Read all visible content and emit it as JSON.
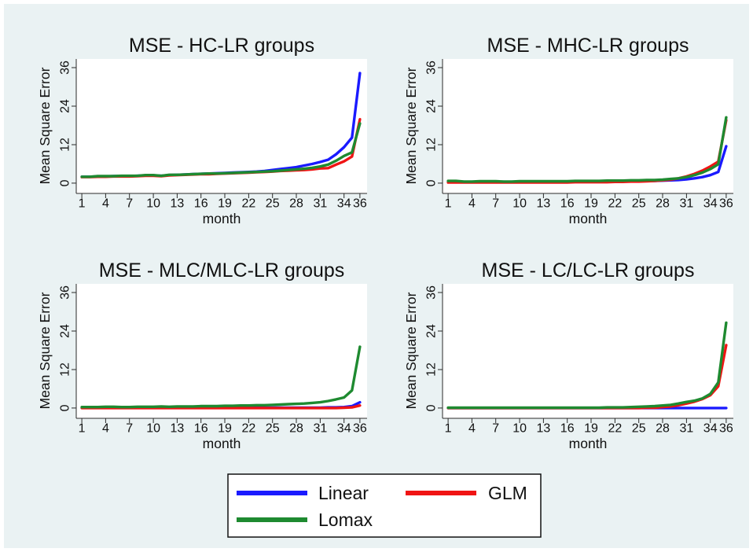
{
  "colors": {
    "background": "#eaf2f3",
    "plot_background": "#ffffff"
  },
  "legend": {
    "position": "bottom",
    "items": [
      {
        "label": "Linear",
        "color": "#1a1aff"
      },
      {
        "label": "GLM",
        "color": "#f01414"
      },
      {
        "label": "Lomax",
        "color": "#1e8a30"
      }
    ]
  },
  "chart_data": [
    {
      "type": "line",
      "title": "MSE - HC-LR groups",
      "xlabel": "month",
      "ylabel": "Mean Square Error",
      "xlim": [
        0.3,
        36.9
      ],
      "ylim": [
        -3.2,
        38.7
      ],
      "xticks": [
        1,
        4,
        7,
        10,
        13,
        16,
        19,
        22,
        25,
        28,
        31,
        34,
        36
      ],
      "yticks": [
        0,
        12,
        24,
        36
      ],
      "grid": false,
      "x": [
        1,
        2,
        3,
        4,
        5,
        6,
        7,
        8,
        9,
        10,
        11,
        12,
        13,
        14,
        15,
        16,
        17,
        18,
        19,
        20,
        21,
        22,
        23,
        24,
        25,
        26,
        27,
        28,
        29,
        30,
        31,
        32,
        33,
        34,
        35,
        36
      ],
      "series": [
        {
          "name": "Linear",
          "color": "#1a1aff",
          "values": [
            2.0,
            2.0,
            2.1,
            2.1,
            2.2,
            2.2,
            2.2,
            2.3,
            2.4,
            2.4,
            2.3,
            2.5,
            2.6,
            2.7,
            2.8,
            2.9,
            3.0,
            3.1,
            3.2,
            3.3,
            3.4,
            3.5,
            3.6,
            3.8,
            4.1,
            4.4,
            4.7,
            5.0,
            5.5,
            6.0,
            6.6,
            7.3,
            9.0,
            11.2,
            14.2,
            34.3
          ]
        },
        {
          "name": "GLM",
          "color": "#f01414",
          "values": [
            1.9,
            1.9,
            2.0,
            2.0,
            2.1,
            2.1,
            2.1,
            2.2,
            2.3,
            2.3,
            2.2,
            2.4,
            2.5,
            2.6,
            2.7,
            2.8,
            2.8,
            2.9,
            3.0,
            3.1,
            3.2,
            3.3,
            3.4,
            3.5,
            3.6,
            3.8,
            3.9,
            4.0,
            4.1,
            4.3,
            4.6,
            4.7,
            5.8,
            6.8,
            8.3,
            19.9
          ]
        },
        {
          "name": "Lomax",
          "color": "#1e8a30",
          "values": [
            2.0,
            2.0,
            2.2,
            2.2,
            2.2,
            2.3,
            2.3,
            2.3,
            2.5,
            2.5,
            2.3,
            2.6,
            2.6,
            2.7,
            2.8,
            2.9,
            3.0,
            3.0,
            3.1,
            3.2,
            3.3,
            3.4,
            3.5,
            3.6,
            3.7,
            3.9,
            4.1,
            4.3,
            4.5,
            4.8,
            5.2,
            5.8,
            7.0,
            8.5,
            9.6,
            18.6
          ]
        }
      ]
    },
    {
      "type": "line",
      "title": "MSE - MHC-LR groups",
      "xlabel": "month",
      "ylabel": "Mean Square Error",
      "xlim": [
        0.3,
        36.9
      ],
      "ylim": [
        -3.2,
        38.7
      ],
      "xticks": [
        1,
        4,
        7,
        10,
        13,
        16,
        19,
        22,
        25,
        28,
        31,
        34,
        36
      ],
      "yticks": [
        0,
        12,
        24,
        36
      ],
      "grid": false,
      "x": [
        1,
        2,
        3,
        4,
        5,
        6,
        7,
        8,
        9,
        10,
        11,
        12,
        13,
        14,
        15,
        16,
        17,
        18,
        19,
        20,
        21,
        22,
        23,
        24,
        25,
        26,
        27,
        28,
        29,
        30,
        31,
        32,
        33,
        34,
        35,
        36
      ],
      "series": [
        {
          "name": "Linear",
          "color": "#1a1aff",
          "values": [
            0.5,
            0.5,
            0.4,
            0.4,
            0.4,
            0.4,
            0.4,
            0.4,
            0.4,
            0.4,
            0.4,
            0.4,
            0.4,
            0.4,
            0.4,
            0.4,
            0.5,
            0.5,
            0.5,
            0.5,
            0.5,
            0.5,
            0.6,
            0.6,
            0.6,
            0.7,
            0.7,
            0.8,
            0.9,
            1.0,
            1.2,
            1.5,
            1.9,
            2.5,
            3.5,
            11.5
          ]
        },
        {
          "name": "GLM",
          "color": "#f01414",
          "values": [
            0.2,
            0.2,
            0.2,
            0.2,
            0.2,
            0.2,
            0.2,
            0.2,
            0.2,
            0.2,
            0.2,
            0.2,
            0.2,
            0.2,
            0.2,
            0.2,
            0.3,
            0.3,
            0.3,
            0.3,
            0.3,
            0.4,
            0.4,
            0.5,
            0.5,
            0.6,
            0.7,
            0.9,
            1.1,
            1.5,
            2.1,
            2.9,
            3.9,
            5.2,
            6.7,
            19.6
          ]
        },
        {
          "name": "Lomax",
          "color": "#1e8a30",
          "values": [
            0.7,
            0.7,
            0.5,
            0.5,
            0.6,
            0.6,
            0.6,
            0.5,
            0.5,
            0.6,
            0.6,
            0.6,
            0.6,
            0.6,
            0.6,
            0.6,
            0.7,
            0.7,
            0.7,
            0.7,
            0.8,
            0.8,
            0.8,
            0.9,
            0.9,
            1.0,
            1.0,
            1.1,
            1.3,
            1.5,
            1.9,
            2.5,
            3.3,
            4.4,
            5.9,
            20.5
          ]
        }
      ]
    },
    {
      "type": "line",
      "title": "MSE - MLC/MLC-LR groups",
      "xlabel": "month",
      "ylabel": "Mean Square Error",
      "xlim": [
        0.3,
        36.9
      ],
      "ylim": [
        -3.2,
        38.7
      ],
      "xticks": [
        1,
        4,
        7,
        10,
        13,
        16,
        19,
        22,
        25,
        28,
        31,
        34,
        36
      ],
      "yticks": [
        0,
        12,
        24,
        36
      ],
      "grid": false,
      "x": [
        1,
        2,
        3,
        4,
        5,
        6,
        7,
        8,
        9,
        10,
        11,
        12,
        13,
        14,
        15,
        16,
        17,
        18,
        19,
        20,
        21,
        22,
        23,
        24,
        25,
        26,
        27,
        28,
        29,
        30,
        31,
        32,
        33,
        34,
        35,
        36
      ],
      "series": [
        {
          "name": "Linear",
          "color": "#1a1aff",
          "values": [
            0.1,
            0.1,
            0.1,
            0.1,
            0.1,
            0.1,
            0.1,
            0.1,
            0.1,
            0.1,
            0.1,
            0.1,
            0.1,
            0.1,
            0.1,
            0.1,
            0.1,
            0.1,
            0.1,
            0.1,
            0.1,
            0.1,
            0.1,
            0.1,
            0.1,
            0.1,
            0.1,
            0.1,
            0.1,
            0.1,
            0.1,
            0.2,
            0.2,
            0.3,
            0.6,
            1.8
          ]
        },
        {
          "name": "GLM",
          "color": "#f01414",
          "values": [
            0,
            0,
            0,
            0,
            0,
            0,
            0,
            0,
            0,
            0,
            0,
            0,
            0,
            0,
            0,
            0,
            0,
            0,
            0,
            0,
            0,
            0,
            0,
            0,
            0,
            0,
            0,
            0,
            0,
            0,
            0,
            0,
            0,
            0.1,
            0.2,
            0.8
          ]
        },
        {
          "name": "Lomax",
          "color": "#1e8a30",
          "values": [
            0.3,
            0.3,
            0.3,
            0.4,
            0.4,
            0.3,
            0.3,
            0.4,
            0.4,
            0.4,
            0.5,
            0.4,
            0.5,
            0.5,
            0.5,
            0.6,
            0.6,
            0.6,
            0.7,
            0.7,
            0.8,
            0.8,
            0.9,
            0.9,
            1.0,
            1.1,
            1.2,
            1.3,
            1.4,
            1.6,
            1.8,
            2.2,
            2.7,
            3.3,
            5.5,
            19.1
          ]
        }
      ]
    },
    {
      "type": "line",
      "title": "MSE - LC/LC-LR groups",
      "xlabel": "month",
      "ylabel": "Mean Square Error",
      "xlim": [
        0.3,
        36.9
      ],
      "ylim": [
        -3.2,
        38.7
      ],
      "xticks": [
        1,
        4,
        7,
        10,
        13,
        16,
        19,
        22,
        25,
        28,
        31,
        34,
        36
      ],
      "yticks": [
        0,
        12,
        24,
        36
      ],
      "grid": false,
      "x": [
        1,
        2,
        3,
        4,
        5,
        6,
        7,
        8,
        9,
        10,
        11,
        12,
        13,
        14,
        15,
        16,
        17,
        18,
        19,
        20,
        21,
        22,
        23,
        24,
        25,
        26,
        27,
        28,
        29,
        30,
        31,
        32,
        33,
        34,
        35,
        36
      ],
      "series": [
        {
          "name": "Linear",
          "color": "#1a1aff",
          "values": [
            0,
            0,
            0,
            0,
            0,
            0,
            0,
            0,
            0,
            0,
            0,
            0,
            0,
            0,
            0,
            0,
            0,
            0,
            0,
            0,
            0,
            0,
            0,
            0,
            0,
            0,
            0,
            0,
            0,
            0,
            0,
            0,
            0,
            0,
            0,
            0
          ]
        },
        {
          "name": "GLM",
          "color": "#f01414",
          "values": [
            0,
            0,
            0,
            0,
            0,
            0,
            0,
            0,
            0,
            0,
            0,
            0,
            0,
            0,
            0,
            0,
            0,
            0,
            0,
            0,
            0,
            0,
            0,
            0,
            0,
            0.1,
            0.1,
            0.3,
            0.5,
            0.9,
            1.4,
            2.0,
            2.8,
            4.0,
            6.8,
            19.6
          ]
        },
        {
          "name": "Lomax",
          "color": "#1e8a30",
          "values": [
            0.1,
            0.1,
            0.1,
            0.1,
            0.1,
            0.1,
            0.1,
            0.1,
            0.1,
            0.1,
            0.1,
            0.1,
            0.1,
            0.1,
            0.1,
            0.1,
            0.1,
            0.1,
            0.1,
            0.1,
            0.2,
            0.2,
            0.2,
            0.3,
            0.4,
            0.5,
            0.6,
            0.8,
            1.0,
            1.4,
            1.9,
            2.3,
            3.0,
            4.4,
            8.0,
            26.6
          ]
        }
      ]
    }
  ]
}
